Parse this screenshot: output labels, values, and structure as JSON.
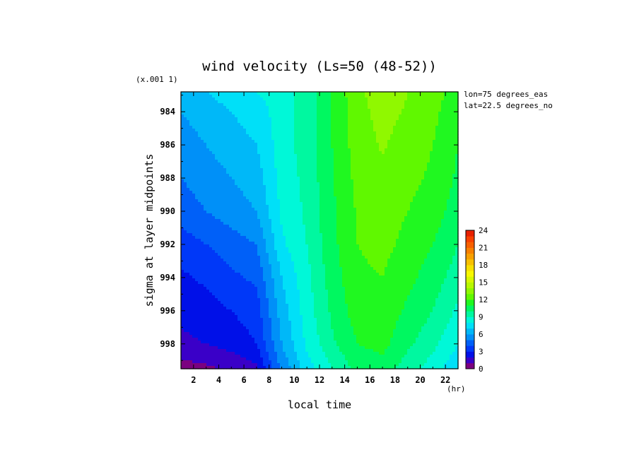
{
  "chart_data": {
    "type": "heatmap",
    "title": "wind velocity (Ls=50 (48-52))",
    "xlabel": "local time",
    "ylabel": "sigma at layer midpoints",
    "x_unit": "(hr)",
    "y_scale_note": "(x.001 1)",
    "annotations": [
      "lon=75 degrees_eas",
      "lat=22.5 degrees_no"
    ],
    "xlim": [
      1,
      23
    ],
    "ylim": [
      999.5,
      982.8
    ],
    "x_ticks": [
      2,
      4,
      6,
      8,
      10,
      12,
      14,
      16,
      18,
      20,
      22
    ],
    "y_ticks": [
      984,
      986,
      988,
      990,
      992,
      994,
      996,
      998
    ],
    "x_tick_labels": [
      "2",
      "4",
      "6",
      "8",
      "10",
      "12",
      "14",
      "16",
      "18",
      "20",
      "22"
    ],
    "y_tick_labels": [
      "984",
      "986",
      "988",
      "990",
      "992",
      "994",
      "996",
      "998"
    ],
    "x": [
      1,
      3,
      5,
      7,
      9,
      11,
      13,
      15,
      17,
      19,
      21,
      23
    ],
    "y": [
      982.8,
      984,
      986,
      988,
      990,
      992,
      994,
      996,
      998,
      999.5
    ],
    "values": [
      [
        6.5,
        7.0,
        7.5,
        8.0,
        8.5,
        9.5,
        11.0,
        12.8,
        13.5,
        13.0,
        12.5,
        11.5
      ],
      [
        6.0,
        6.5,
        7.0,
        7.5,
        8.5,
        9.5,
        11.0,
        12.7,
        13.3,
        12.9,
        12.3,
        11.2
      ],
      [
        5.5,
        6.0,
        6.5,
        7.0,
        8.5,
        9.5,
        11.0,
        12.5,
        13.1,
        12.6,
        12.0,
        11.0
      ],
      [
        5.0,
        5.5,
        6.0,
        6.5,
        8.4,
        9.3,
        10.9,
        12.3,
        12.8,
        12.3,
        11.8,
        10.8
      ],
      [
        4.5,
        5.0,
        5.5,
        6.0,
        8.2,
        9.2,
        10.8,
        12.1,
        12.5,
        12.0,
        11.5,
        10.5
      ],
      [
        3.5,
        4.0,
        4.5,
        5.0,
        7.8,
        9.0,
        10.7,
        12.0,
        12.3,
        11.7,
        11.0,
        10.0
      ],
      [
        2.8,
        3.2,
        3.8,
        4.2,
        7.0,
        8.7,
        10.5,
        11.8,
        12.0,
        11.3,
        10.5,
        9.5
      ],
      [
        2.2,
        2.6,
        3.0,
        3.5,
        6.5,
        8.5,
        10.2,
        11.5,
        11.7,
        10.8,
        10.0,
        8.8
      ],
      [
        1.8,
        2.0,
        2.4,
        3.0,
        6.0,
        8.2,
        9.8,
        11.0,
        11.3,
        10.2,
        9.3,
        8.0
      ],
      [
        0.5,
        0.8,
        1.2,
        1.8,
        5.2,
        7.5,
        9.0,
        10.3,
        10.6,
        9.5,
        8.5,
        7.2
      ]
    ],
    "colorbar": {
      "min": 0,
      "max": 24,
      "ticks": [
        0,
        3,
        6,
        9,
        12,
        15,
        18,
        21,
        24
      ],
      "tick_labels": [
        "0",
        "3",
        "6",
        "9",
        "12",
        "15",
        "18",
        "21",
        "24"
      ],
      "colors": [
        "#7b0080",
        "#3a00c8",
        "#0010e8",
        "#0038f8",
        "#0060f8",
        "#0090f8",
        "#00b8f8",
        "#00e0f8",
        "#00f8d8",
        "#00f8a0",
        "#00f860",
        "#20f820",
        "#60f800",
        "#90f800",
        "#b8f800",
        "#d8f800",
        "#f8f800",
        "#f8e000",
        "#f8c000",
        "#f8a000",
        "#f88000",
        "#f86000",
        "#f84000",
        "#e82000"
      ]
    }
  }
}
